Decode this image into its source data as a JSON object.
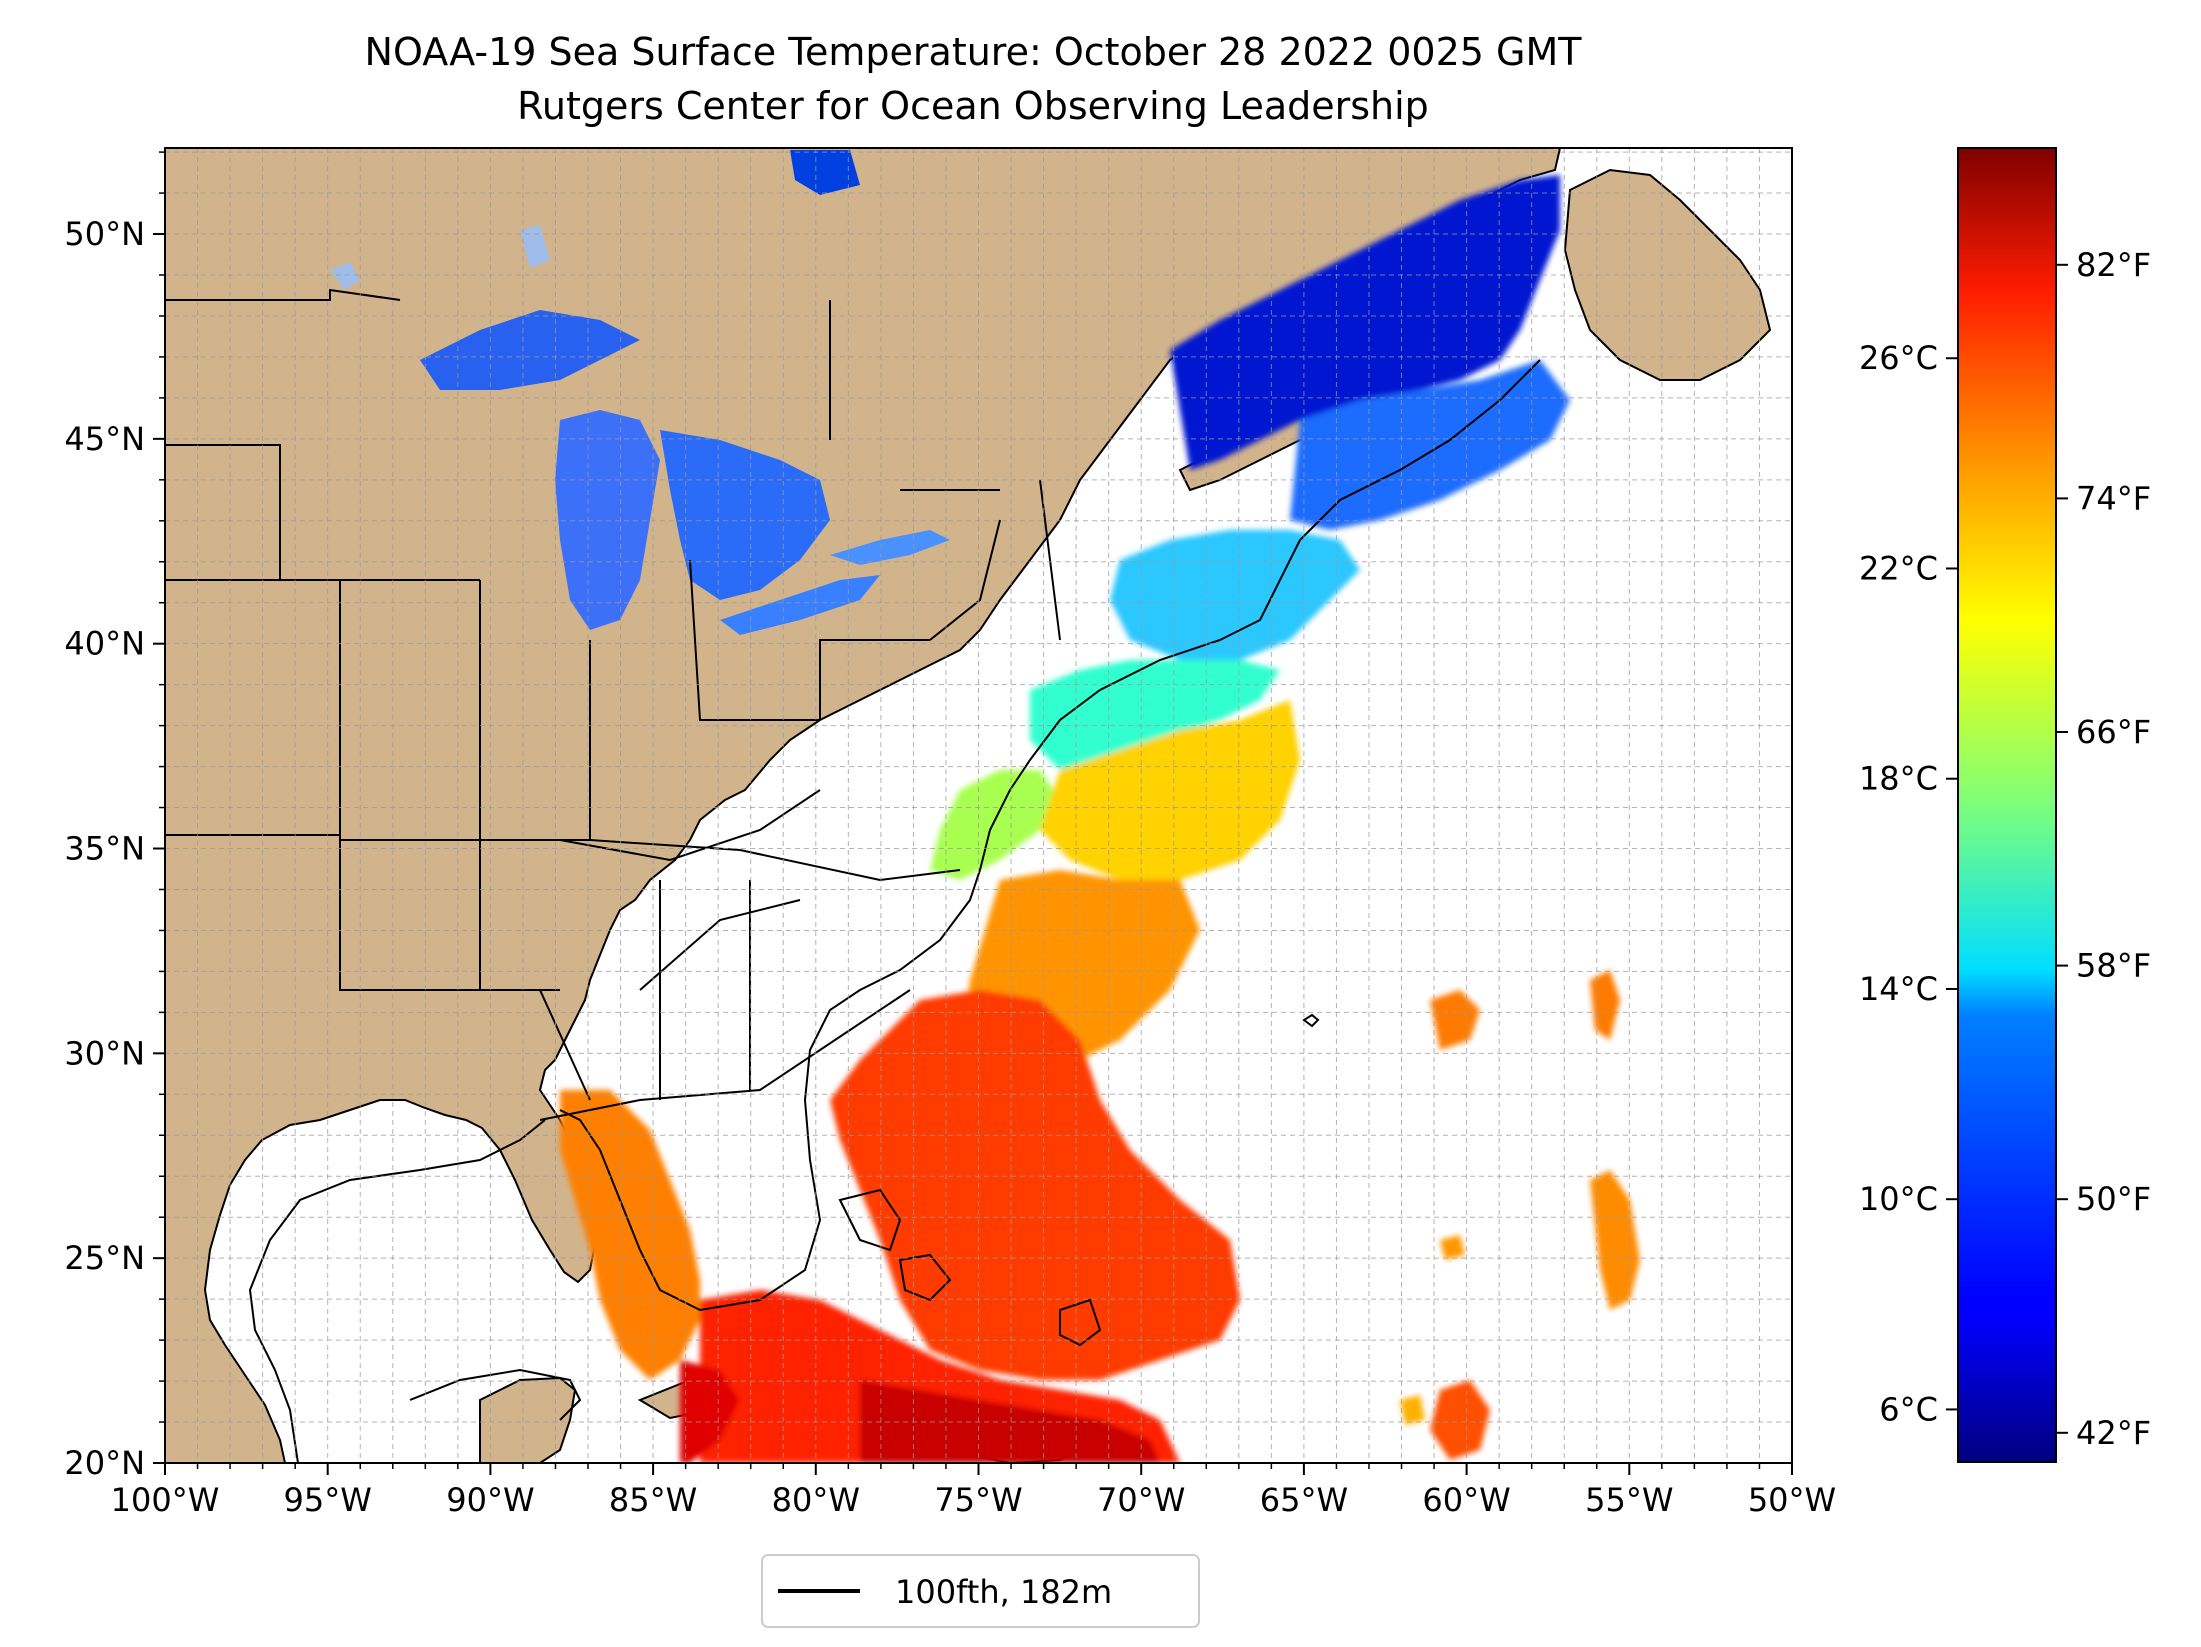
{
  "header": {
    "title": "NOAA-19 Sea Surface Temperature: October 28 2022 0025 GMT",
    "subtitle": "Rutgers Center for Ocean Observing Leadership"
  },
  "map": {
    "lon_range": [
      -100,
      -50
    ],
    "lat_range": [
      20,
      52.1
    ],
    "x_ticks": [
      "100°W",
      "95°W",
      "90°W",
      "85°W",
      "80°W",
      "75°W",
      "70°W",
      "65°W",
      "60°W",
      "55°W",
      "50°W"
    ],
    "y_ticks": [
      "20°N",
      "25°N",
      "30°N",
      "35°N",
      "40°N",
      "45°N",
      "50°N"
    ],
    "grid": "dashed 1° lines",
    "colors": {
      "land": "#d2b48c",
      "ocean_no_data": "#ffffff",
      "lakes": "#9fbde8",
      "borders": "#000000"
    }
  },
  "colorbar": {
    "colormap": "jet",
    "range_celsius": [
      5,
      30
    ],
    "celsius_ticks": [
      "6°C",
      "10°C",
      "14°C",
      "18°C",
      "22°C",
      "26°C"
    ],
    "fahrenheit_ticks": [
      "42°F",
      "50°F",
      "58°F",
      "66°F",
      "74°F",
      "82°F"
    ]
  },
  "legend": {
    "label": "100fth, 182m",
    "placement": "bottom-center"
  }
}
